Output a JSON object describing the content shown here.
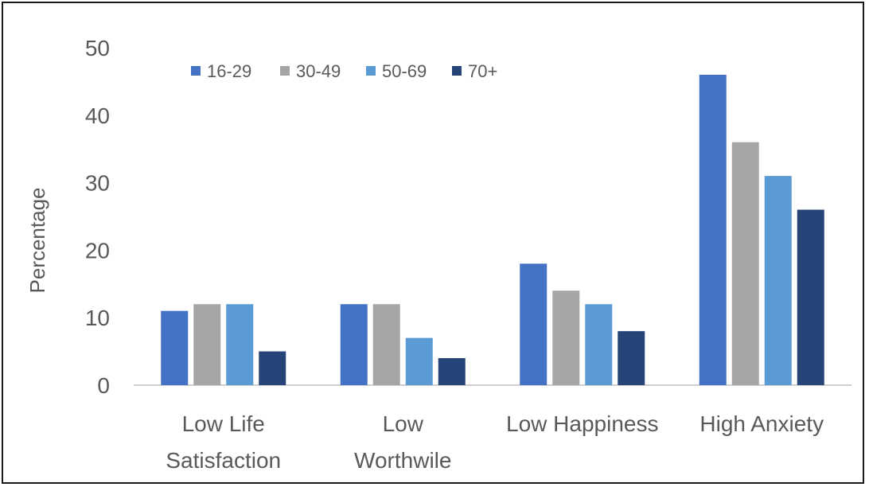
{
  "chart_data": {
    "type": "bar",
    "title": "",
    "xlabel": "",
    "ylabel": "Percentage",
    "ylim": [
      0,
      50
    ],
    "yticks": [
      0,
      10,
      20,
      30,
      40,
      50
    ],
    "categories": [
      [
        "Low Life",
        "Satisfaction"
      ],
      [
        "Low",
        "Worthwile"
      ],
      [
        "Low Happiness"
      ],
      [
        "High Anxiety"
      ]
    ],
    "series": [
      {
        "name": "16-29",
        "color": "#4472C4",
        "values": [
          11,
          12,
          18,
          46
        ]
      },
      {
        "name": "30-49",
        "color": "#A5A5A5",
        "values": [
          12,
          12,
          14,
          36
        ]
      },
      {
        "name": "50-69",
        "color": "#5B9BD5",
        "values": [
          12,
          7,
          12,
          31
        ]
      },
      {
        "name": "70+",
        "color": "#264478",
        "values": [
          5,
          4,
          8,
          26
        ]
      }
    ],
    "legend_position": "top-left",
    "grid": false
  }
}
